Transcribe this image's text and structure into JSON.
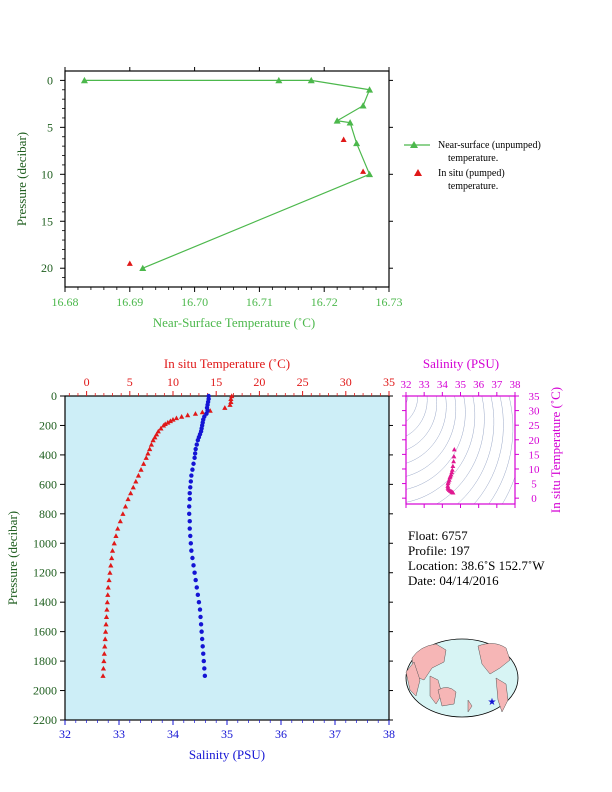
{
  "colors": {
    "green": "#4cb84c",
    "red": "#e01818",
    "blue": "#1414d4",
    "magenta": "#d400d4",
    "darkgreen": "#1e5e1e",
    "plot_bg": "#cdeef7",
    "axis": "#000000"
  },
  "chart_data": [
    {
      "id": "near_surface",
      "type": "line",
      "xlabel": "Near-Surface Temperature (˚C)",
      "ylabel": "Pressure (decibar)",
      "xlim": [
        16.68,
        16.73
      ],
      "ylim": [
        22,
        -1
      ],
      "xticks": [
        "16.68",
        "16.69",
        "16.70",
        "16.71",
        "16.72",
        "16.73"
      ],
      "yticks": [
        "0",
        "5",
        "10",
        "15",
        "20"
      ],
      "series": [
        {
          "name": "Near-surface (unpumped) temperature.",
          "marker": "triangle",
          "x": [
            16.683,
            16.713,
            16.718,
            16.727,
            16.726,
            16.722,
            16.724,
            16.725,
            16.727,
            16.692
          ],
          "y": [
            0,
            0,
            0,
            1,
            2.7,
            4.3,
            4.5,
            6.7,
            10,
            20
          ]
        },
        {
          "name": "In situ (pumped) temperature.",
          "marker": "triangle",
          "x": [
            16.723,
            16.726,
            16.69
          ],
          "y": [
            6.3,
            9.7,
            19.5
          ]
        }
      ],
      "legend_position": "right"
    },
    {
      "id": "profile",
      "type": "scatter",
      "ylabel": "Pressure (decibar)",
      "ylim": [
        2200,
        0
      ],
      "yticks": [
        "0",
        "200",
        "400",
        "600",
        "800",
        "1000",
        "1200",
        "1400",
        "1600",
        "1800",
        "2000",
        "2200"
      ],
      "temp_axis": {
        "label": "In situ Temperature (˚C)",
        "lim": [
          -2.5,
          35
        ],
        "ticks": [
          "0",
          "5",
          "10",
          "15",
          "20",
          "25",
          "30",
          "35"
        ]
      },
      "sal_axis": {
        "label": "Salinity (PSU)",
        "lim": [
          32,
          38
        ],
        "ticks": [
          "32",
          "33",
          "34",
          "35",
          "36",
          "37",
          "38"
        ]
      },
      "temperature": {
        "pressure": [
          0,
          20,
          40,
          60,
          80,
          100,
          110,
          120,
          130,
          140,
          150,
          160,
          170,
          180,
          190,
          200,
          220,
          240,
          260,
          280,
          300,
          330,
          360,
          390,
          420,
          460,
          500,
          540,
          580,
          620,
          660,
          700,
          750,
          800,
          850,
          900,
          950,
          1000,
          1050,
          1100,
          1150,
          1200,
          1250,
          1300,
          1350,
          1400,
          1450,
          1500,
          1550,
          1600,
          1650,
          1700,
          1750,
          1800,
          1850,
          1900
        ],
        "values": [
          16.8,
          16.7,
          16.7,
          16.6,
          16.0,
          14.3,
          13.4,
          12.6,
          11.7,
          11.0,
          10.4,
          10.0,
          9.7,
          9.4,
          9.1,
          8.9,
          8.6,
          8.3,
          8.1,
          7.9,
          7.7,
          7.5,
          7.3,
          7.1,
          6.9,
          6.6,
          6.3,
          6.0,
          5.7,
          5.4,
          5.1,
          4.8,
          4.5,
          4.2,
          3.9,
          3.6,
          3.4,
          3.2,
          3.0,
          2.9,
          2.8,
          2.7,
          2.6,
          2.5,
          2.45,
          2.4,
          2.35,
          2.3,
          2.25,
          2.2,
          2.15,
          2.1,
          2.05,
          2.0,
          1.95,
          1.9
        ]
      },
      "salinity": {
        "pressure": [
          0,
          20,
          40,
          60,
          80,
          100,
          120,
          140,
          160,
          180,
          200,
          220,
          240,
          260,
          280,
          300,
          330,
          360,
          390,
          420,
          460,
          500,
          540,
          580,
          620,
          660,
          700,
          750,
          800,
          850,
          900,
          950,
          1000,
          1050,
          1100,
          1150,
          1200,
          1250,
          1300,
          1350,
          1400,
          1450,
          1500,
          1550,
          1600,
          1650,
          1700,
          1750,
          1800,
          1850,
          1900
        ],
        "values": [
          34.66,
          34.66,
          34.65,
          34.64,
          34.63,
          34.64,
          34.62,
          34.58,
          34.56,
          34.55,
          34.54,
          34.53,
          34.52,
          34.5,
          34.48,
          34.46,
          34.44,
          34.42,
          34.41,
          34.4,
          34.38,
          34.36,
          34.34,
          34.33,
          34.32,
          34.31,
          34.31,
          34.3,
          34.3,
          34.31,
          34.31,
          34.32,
          34.33,
          34.34,
          34.36,
          34.38,
          34.4,
          34.42,
          34.44,
          34.46,
          34.48,
          34.5,
          34.51,
          34.52,
          34.53,
          34.54,
          34.55,
          34.56,
          34.57,
          34.58,
          34.59
        ]
      }
    },
    {
      "id": "ts_diagram",
      "type": "scatter",
      "xlabel": "Salinity (PSU)",
      "ylabel": "In situ Temperature (˚C)",
      "xlim": [
        32,
        38
      ],
      "ylim": [
        -2,
        35
      ],
      "xticks": [
        "32",
        "33",
        "34",
        "35",
        "36",
        "37",
        "38"
      ],
      "yticks": [
        "0",
        "5",
        "10",
        "15",
        "20",
        "25",
        "30",
        "35"
      ],
      "salinity": [
        34.66,
        34.64,
        34.62,
        34.58,
        34.55,
        34.52,
        34.48,
        34.44,
        34.41,
        34.38,
        34.34,
        34.31,
        34.3,
        34.31,
        34.33,
        34.38,
        34.44,
        34.5,
        34.55,
        34.59
      ],
      "temperature": [
        16.7,
        14.3,
        12.6,
        11.0,
        9.7,
        8.9,
        8.1,
        7.5,
        7.1,
        6.3,
        5.7,
        5.1,
        4.2,
        3.6,
        3.2,
        2.8,
        2.5,
        2.3,
        2.1,
        1.9
      ]
    }
  ],
  "info": {
    "float": "Float:  6757",
    "profile": "Profile:  197",
    "location": "Location:  38.6˚S  152.7˚W",
    "date": "Date:  04/14/2016"
  }
}
